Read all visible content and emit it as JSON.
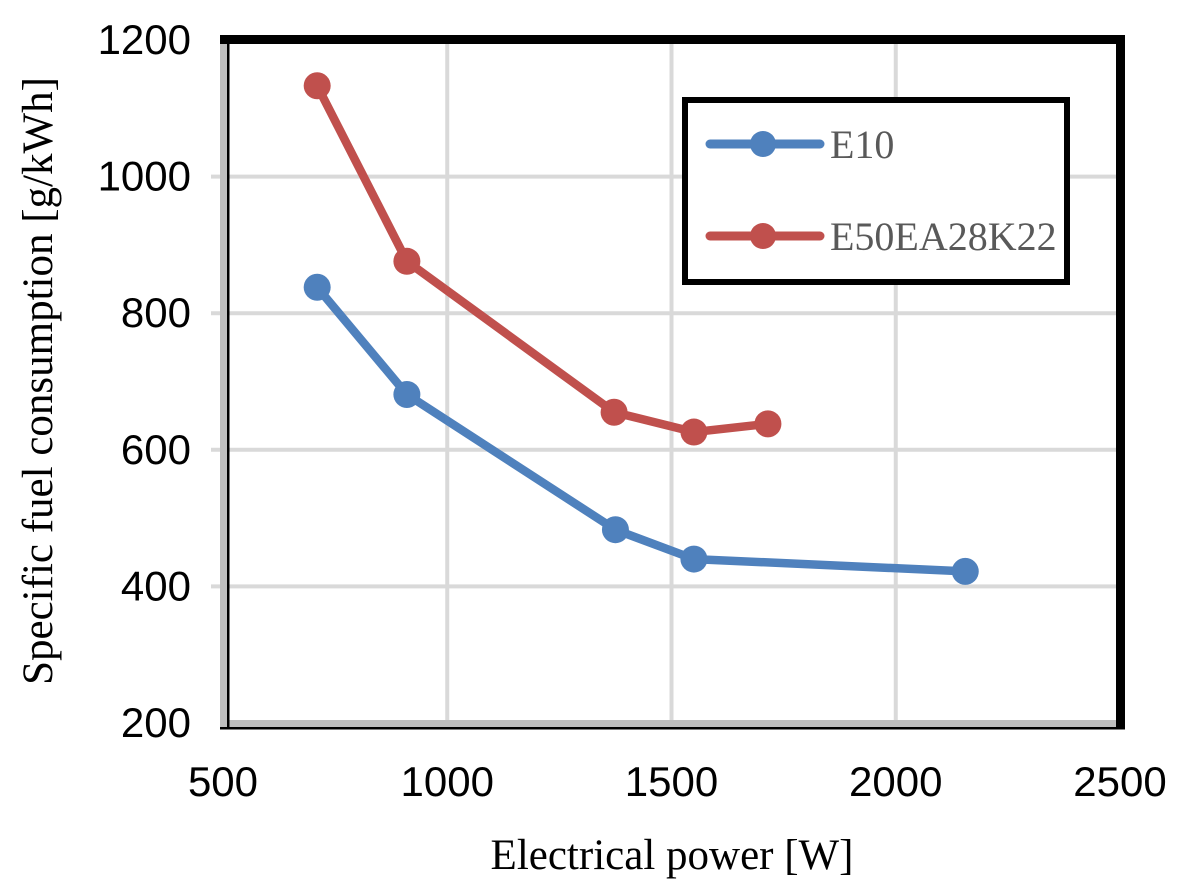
{
  "chart_data": {
    "type": "line",
    "title": "",
    "xlabel": "Electrical power [W]",
    "ylabel": "Specific fuel consumption [g/kWh]",
    "xlim": [
      500,
      2500
    ],
    "ylim": [
      200,
      1200
    ],
    "x_ticks": [
      500,
      1000,
      1500,
      2000,
      2500
    ],
    "y_ticks": [
      200,
      400,
      600,
      800,
      1000,
      1200
    ],
    "grid": true,
    "legend_position": "upper right",
    "series": [
      {
        "name": "E10",
        "color": "#4f81bd",
        "marker": "circle",
        "points": [
          [
            710,
            838
          ],
          [
            910,
            681
          ],
          [
            1375,
            483
          ],
          [
            1550,
            440
          ],
          [
            2155,
            422
          ]
        ]
      },
      {
        "name": "E50EA28K22",
        "color": "#c0504d",
        "marker": "circle",
        "points": [
          [
            710,
            1133
          ],
          [
            910,
            876
          ],
          [
            1372,
            655
          ],
          [
            1550,
            626
          ],
          [
            1715,
            638
          ]
        ]
      }
    ]
  },
  "colors": {
    "background": "#ffffff",
    "gridline": "#d9d9d9",
    "axis_bar_gray": "#bfbfbf",
    "border_black": "#000000",
    "tick_text": "#000000",
    "legend_text": "#595959"
  }
}
